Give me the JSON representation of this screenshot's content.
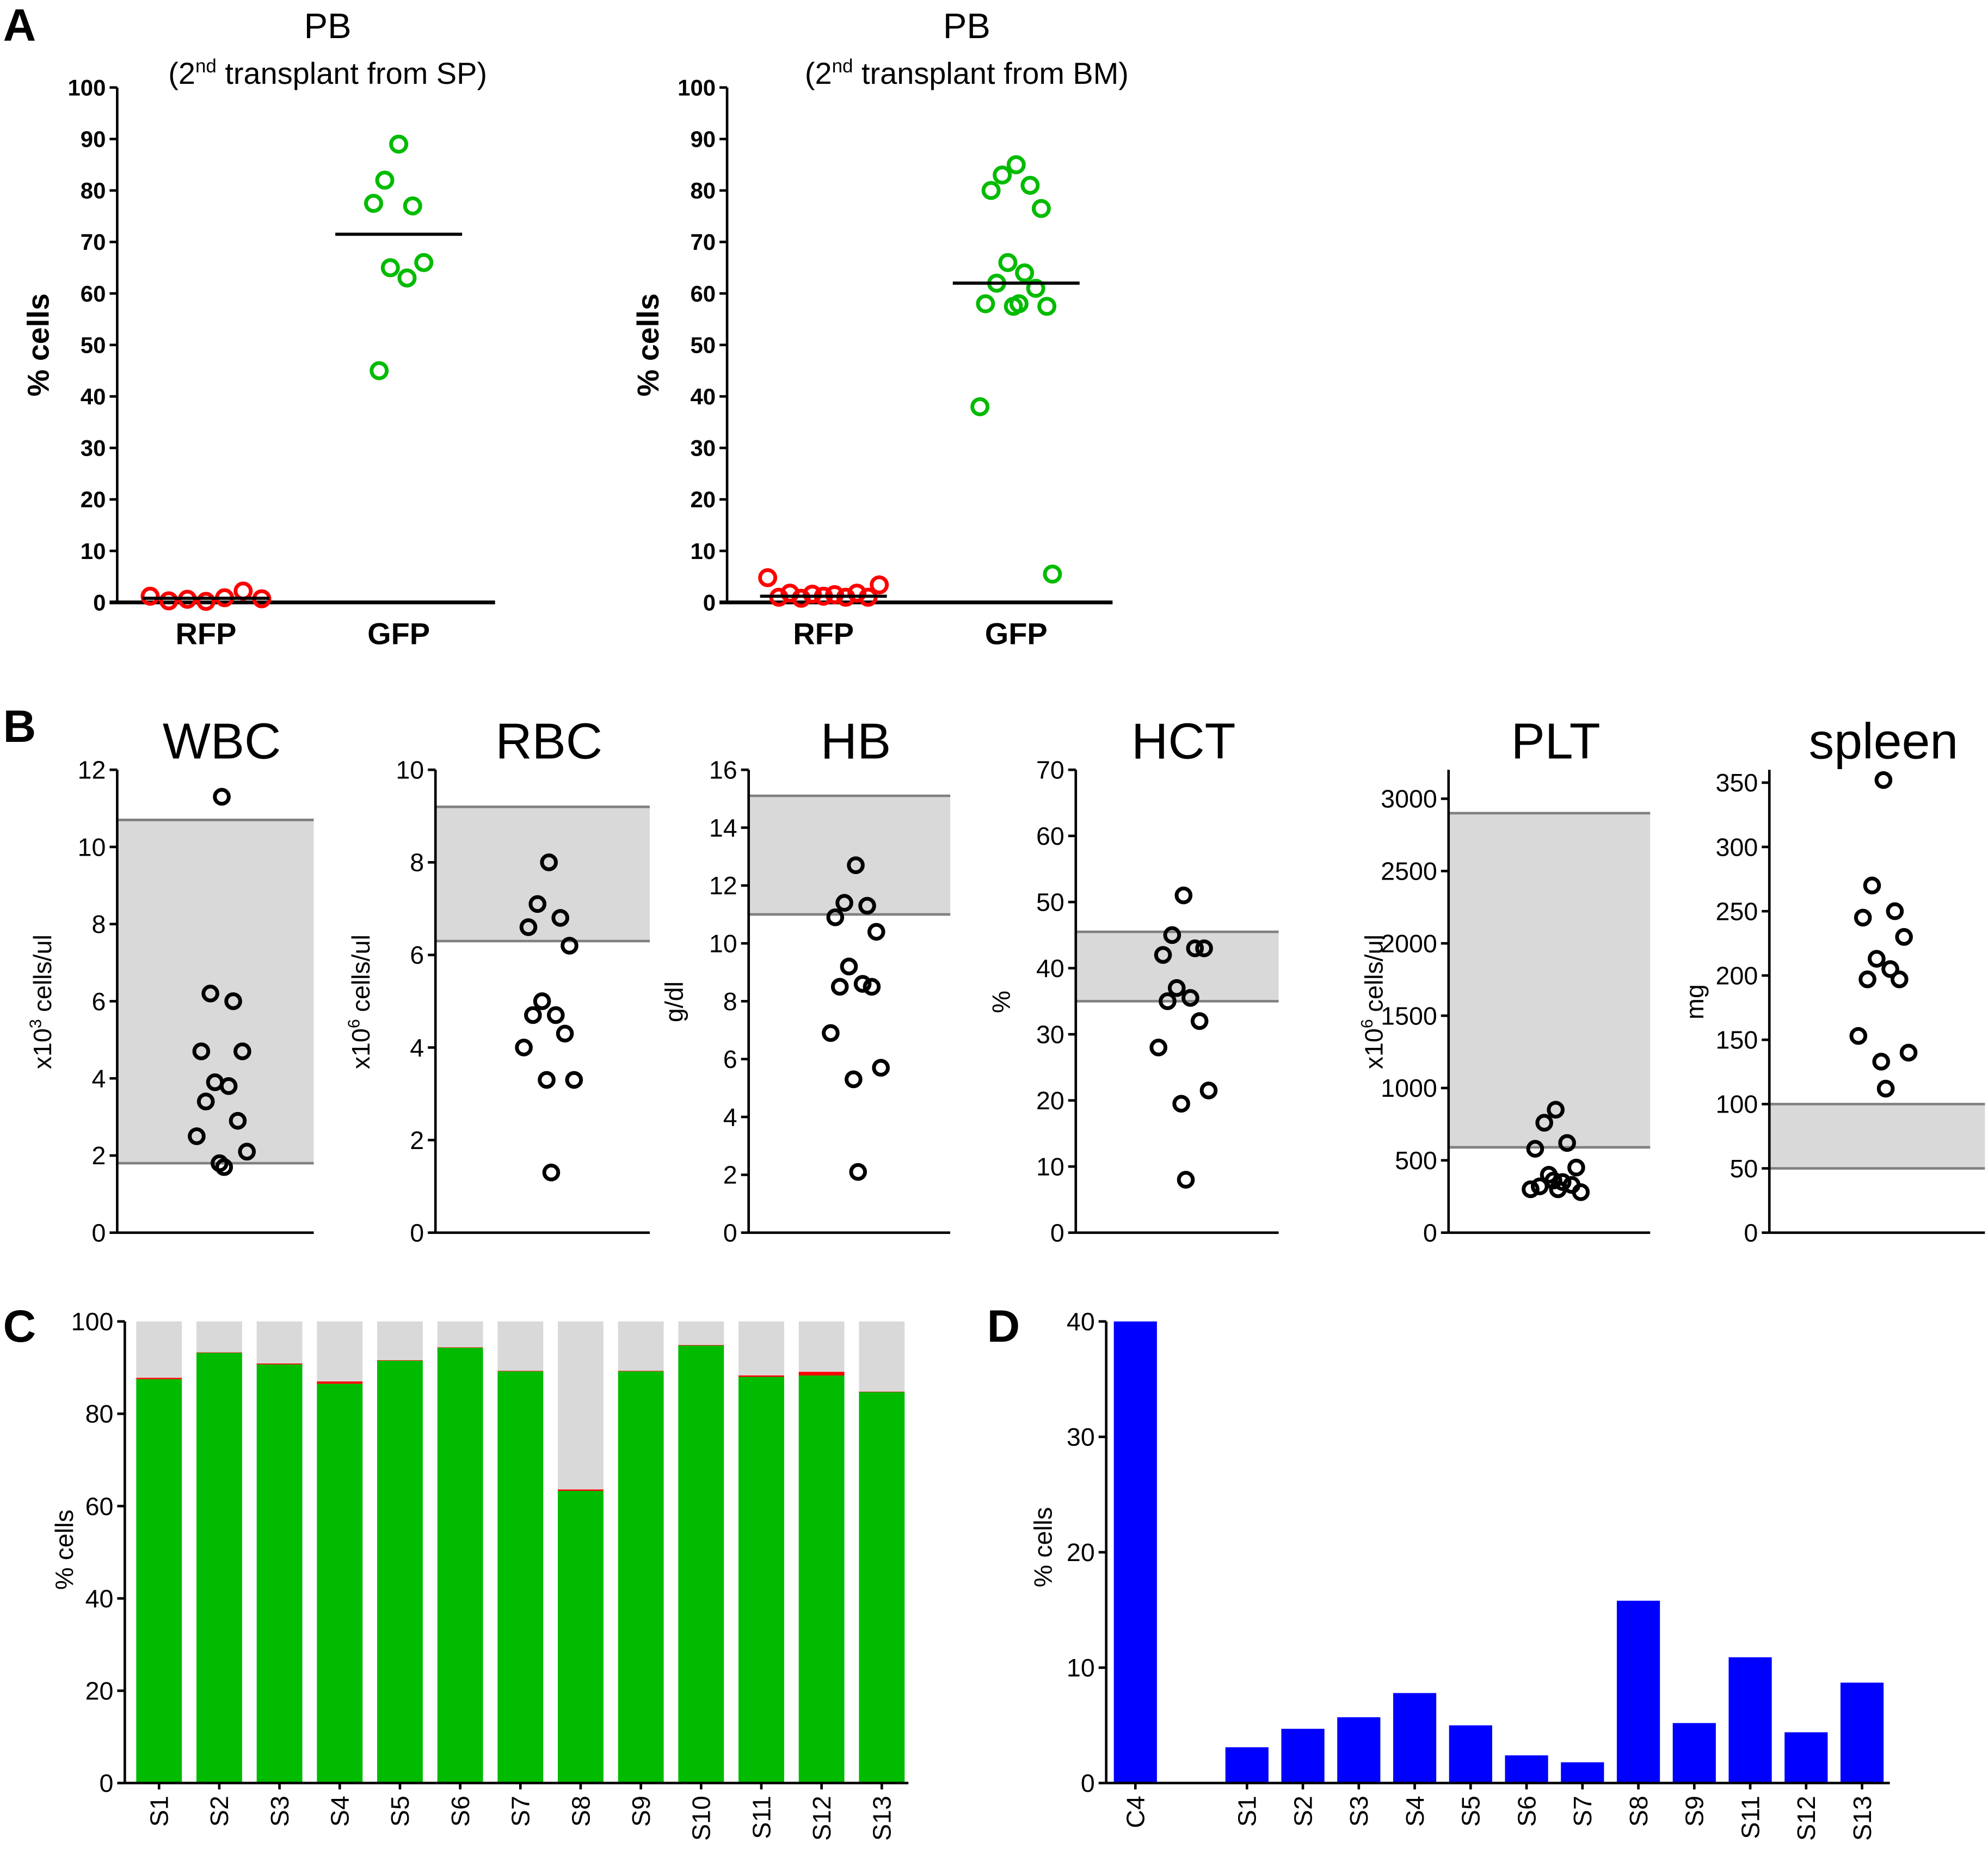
{
  "panel_letters": [
    "A",
    "B",
    "C",
    "D"
  ],
  "colors": {
    "rfp": "#ff0000",
    "gfp": "#00bb00",
    "band": "#d9d9d9",
    "band_line": "#808080",
    "bar_gray": "#d9d9d9",
    "bar_blue": "#0000ff",
    "point": "#000000"
  },
  "chart_data": [
    {
      "id": "A1",
      "type": "scatter",
      "title": "PB",
      "subtitle_pre": "(2",
      "subtitle_sup": "nd",
      "subtitle_post": " transplant from SP)",
      "ylabel": "% cells",
      "ylim": [
        0,
        100
      ],
      "yticks": [
        0,
        10,
        20,
        30,
        40,
        50,
        60,
        70,
        80,
        90,
        100
      ],
      "categories": [
        "RFP",
        "GFP"
      ],
      "series": [
        {
          "category": "RFP",
          "values": [
            1.2,
            0.3,
            0.6,
            0.2,
            0.9,
            2.2,
            0.7
          ],
          "mean": 0.8
        },
        {
          "category": "GFP",
          "values": [
            89,
            82,
            77,
            77.5,
            66,
            65,
            63,
            45
          ],
          "mean": 71.5
        }
      ]
    },
    {
      "id": "A2",
      "type": "scatter",
      "title": "PB",
      "subtitle_pre": "(2",
      "subtitle_sup": "nd",
      "subtitle_post": " transplant from BM)",
      "ylabel": "% cells",
      "ylim": [
        0,
        100
      ],
      "yticks": [
        0,
        10,
        20,
        30,
        40,
        50,
        60,
        70,
        80,
        90,
        100
      ],
      "categories": [
        "RFP",
        "GFP"
      ],
      "series": [
        {
          "category": "RFP",
          "values": [
            4.8,
            1.0,
            1.8,
            0.8,
            1.6,
            1.2,
            1.5,
            1.0,
            1.8,
            1.0,
            3.4
          ],
          "mean": 1.2
        },
        {
          "category": "GFP",
          "values": [
            85,
            83,
            81,
            80,
            76.5,
            66,
            64,
            62,
            61,
            58,
            57.5,
            57.5,
            58,
            38,
            5.5
          ],
          "mean": 62
        }
      ]
    },
    {
      "id": "WBC",
      "type": "scatter",
      "title": "WBC",
      "ylabel_pre": "x10",
      "ylabel_sup": "3",
      "ylabel_post": " cells/ul",
      "ylim": [
        0,
        12
      ],
      "yticks": [
        0,
        2,
        4,
        6,
        8,
        10,
        12
      ],
      "normal_range": [
        1.8,
        10.7
      ],
      "values": [
        11.3,
        6.2,
        6.0,
        4.7,
        4.7,
        3.9,
        3.8,
        3.4,
        2.9,
        2.5,
        2.1,
        1.8,
        1.7
      ]
    },
    {
      "id": "RBC",
      "type": "scatter",
      "title": "RBC",
      "ylabel_pre": "x10",
      "ylabel_sup": "6",
      "ylabel_post": " cells/ul",
      "ylim": [
        0,
        10
      ],
      "yticks": [
        0,
        2,
        4,
        6,
        8,
        10
      ],
      "normal_range": [
        6.3,
        9.2
      ],
      "values": [
        8.0,
        7.1,
        6.8,
        6.6,
        6.2,
        5.0,
        4.7,
        4.7,
        4.3,
        4.0,
        3.3,
        3.3,
        1.3
      ]
    },
    {
      "id": "HB",
      "type": "scatter",
      "title": "HB",
      "ylabel_pre": "g/dl",
      "ylabel_sup": "",
      "ylabel_post": "",
      "ylim": [
        0,
        16
      ],
      "yticks": [
        0,
        2,
        4,
        6,
        8,
        10,
        12,
        14,
        16
      ],
      "normal_range": [
        11,
        15.1
      ],
      "values": [
        12.7,
        11.4,
        11.3,
        10.9,
        10.4,
        9.2,
        8.6,
        8.5,
        8.5,
        6.9,
        5.7,
        5.3,
        2.1
      ]
    },
    {
      "id": "HCT",
      "type": "scatter",
      "title": "HCT",
      "ylabel_pre": "%",
      "ylabel_sup": "",
      "ylabel_post": "",
      "ylim": [
        0,
        70
      ],
      "yticks": [
        0,
        10,
        20,
        30,
        40,
        50,
        60,
        70
      ],
      "normal_range": [
        35,
        45.5
      ],
      "values": [
        51,
        45,
        43,
        42,
        43,
        37,
        35.5,
        35,
        32,
        28,
        21.5,
        19.5,
        8
      ]
    },
    {
      "id": "PLT",
      "type": "scatter",
      "title": "PLT",
      "ylabel_pre": "x10",
      "ylabel_sup": "6",
      "ylabel_post": " cells/ul",
      "ylim": [
        0,
        3200
      ],
      "yticks": [
        0,
        500,
        1000,
        1500,
        2000,
        2500,
        3000
      ],
      "normal_range": [
        590,
        2900
      ],
      "values": [
        850,
        760,
        620,
        580,
        450,
        400,
        350,
        320,
        330,
        300,
        280,
        360,
        300
      ]
    },
    {
      "id": "spleen",
      "type": "scatter",
      "title": "spleen",
      "ylabel_pre": "mg",
      "ylabel_sup": "",
      "ylabel_post": "",
      "ylim": [
        0,
        360
      ],
      "yticks": [
        0,
        50,
        100,
        150,
        200,
        250,
        300,
        350
      ],
      "normal_range": [
        50,
        100
      ],
      "values": [
        352,
        270,
        250,
        245,
        230,
        213,
        205,
        197,
        197,
        153,
        140,
        133,
        112
      ]
    },
    {
      "id": "C",
      "type": "bar",
      "stacked": true,
      "ylabel": "% cells",
      "ylim": [
        0,
        100
      ],
      "yticks": [
        0,
        20,
        40,
        60,
        80,
        100
      ],
      "categories": [
        "S1",
        "S2",
        "S3",
        "S4",
        "S5",
        "S6",
        "S7",
        "S8",
        "S9",
        "S10",
        "S11",
        "S12",
        "S13"
      ],
      "series": [
        {
          "color": "#00bb00",
          "values": [
            87.5,
            93.2,
            90.7,
            86.5,
            91.5,
            94.3,
            89.2,
            63.3,
            89.2,
            94.8,
            88.0,
            88.3,
            84.7
          ]
        },
        {
          "color": "#ff0000",
          "values": [
            0.3,
            0.1,
            0.2,
            0.5,
            0.1,
            0.1,
            0.1,
            0.3,
            0.1,
            0.1,
            0.3,
            0.8,
            0.1
          ]
        },
        {
          "color": "#d9d9d9",
          "values": [
            12.2,
            6.7,
            9.1,
            13.0,
            8.4,
            5.6,
            10.7,
            36.4,
            10.7,
            5.1,
            11.7,
            10.9,
            15.2
          ]
        }
      ]
    },
    {
      "id": "D",
      "type": "bar",
      "ylabel": "% cells",
      "ylim": [
        0,
        40
      ],
      "yticks": [
        0,
        10,
        20,
        30,
        40
      ],
      "categories": [
        "C4",
        "",
        "S1",
        "S2",
        "S3",
        "S4",
        "S5",
        "S6",
        "S7",
        "S8",
        "S9",
        "S11",
        "S12",
        "S13"
      ],
      "values": [
        40,
        null,
        3.1,
        4.7,
        5.7,
        7.8,
        5.0,
        2.4,
        1.8,
        15.8,
        5.2,
        10.9,
        4.4,
        8.7
      ]
    }
  ]
}
